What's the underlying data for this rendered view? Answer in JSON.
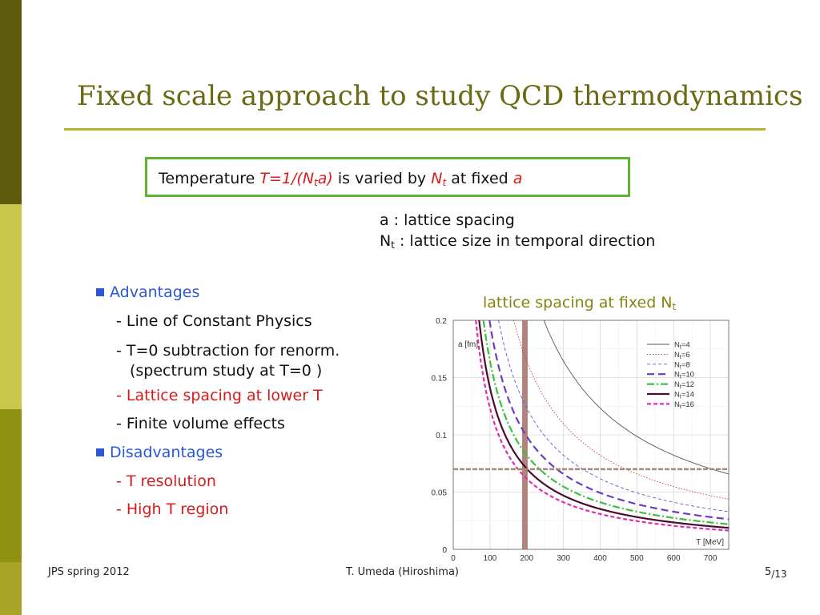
{
  "slide": {
    "title": "Fixed scale approach to study QCD thermodynamics",
    "temperature": {
      "p1": "Temperature ",
      "formula_a": "T=1/(N",
      "formula_sub": "t",
      "formula_b": "a)",
      "p2": " is varied by ",
      "nt": "N",
      "nt_sub": "t",
      "p3": " at fixed ",
      "a": "a"
    },
    "defs": {
      "line1": "a : lattice spacing",
      "line2_n": "N",
      "line2_sub": "t",
      "line2_rest": " : lattice size in temporal direction"
    },
    "list": {
      "advantages": "Advantages",
      "adv1": "- Line of Constant Physics",
      "adv2": "- T=0 subtraction for renorm.",
      "adv2b": "(spectrum study at T=0 )",
      "adv3": "- Lattice spacing at lower T",
      "adv4": "- Finite volume effects",
      "disadvantages": "Disadvantages",
      "dis1": "- T resolution",
      "dis2": "- High T region"
    },
    "chart_title": "lattice spacing at fixed N",
    "chart_title_sub": "t",
    "footer": {
      "left": "JPS spring 2012",
      "center": "T. Umeda (Hiroshima)",
      "page": "5",
      "total": "/13"
    }
  },
  "colors": {
    "title": "#6b6a13",
    "rule": "#b4b62e",
    "box_border": "#5fb32e",
    "highlight_red": "#d41c1c",
    "bullet_blue": "#2b57d6",
    "chart_title": "#858412",
    "sidebar": [
      "#5d5b0b",
      "#c9c84c",
      "#8e9112",
      "#a9a325"
    ]
  },
  "chart_data": {
    "type": "line",
    "xlabel": "T [MeV]",
    "ylabel": "a [fm]",
    "xlim": [
      0,
      750
    ],
    "ylim": [
      0,
      0.2
    ],
    "xticks": [
      0,
      100,
      200,
      300,
      400,
      500,
      600,
      700
    ],
    "yticks": [
      0,
      0.05,
      0.1,
      0.15,
      0.2
    ],
    "ytick_labels": [
      "0",
      "0.05",
      "0.1",
      "0.15",
      "0.2"
    ],
    "relation": "a = 197.33 / (Nt * T)",
    "vertical_band_T": 195,
    "horizontal_line_a": 0.07,
    "legend_position": "top-right",
    "series": [
      {
        "name": "=4",
        "nt": 4,
        "color": "#555555",
        "dash": "",
        "width": 0.9
      },
      {
        "name": "=6",
        "nt": 6,
        "color": "#d13b3b",
        "dash": "1.5,2",
        "width": 0.9
      },
      {
        "name": "=8",
        "nt": 8,
        "color": "#5a5ad6",
        "dash": "4,3",
        "width": 0.9
      },
      {
        "name": "=10",
        "nt": 10,
        "color": "#6a3cc0",
        "dash": "9,5",
        "width": 2.2
      },
      {
        "name": "=12",
        "nt": 12,
        "color": "#3fbf3f",
        "dash": "9,3,2,3",
        "width": 2.2
      },
      {
        "name": "=14",
        "nt": 14,
        "color": "#4a0d2e",
        "dash": "",
        "width": 2.2
      },
      {
        "name": "=16",
        "nt": 16,
        "color": "#e02db0",
        "dash": "5,3",
        "width": 2.2
      }
    ],
    "legend_prefix": "N",
    "legend_sub": "t"
  }
}
